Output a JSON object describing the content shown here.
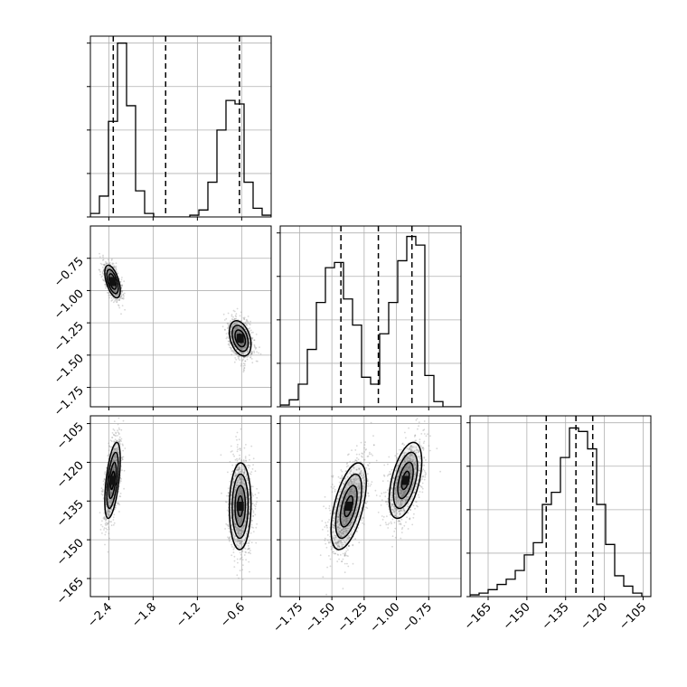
{
  "chart_data": {
    "type": "corner",
    "parameters": [
      {
        "ticks": [
          -2.4,
          -1.8,
          -1.2,
          -0.6
        ],
        "tick_labels": [
          "−2.4",
          "−1.8",
          "−1.2",
          "−0.6"
        ],
        "range": [
          -2.65,
          -0.2
        ],
        "quantiles": [
          -2.34,
          -1.63,
          -0.63
        ],
        "hist_edges_start": -2.65,
        "hist_bin_width": 0.1225,
        "hist_counts": [
          0.02,
          0.12,
          0.55,
          1.0,
          0.64,
          0.15,
          0.02,
          0.0,
          0.0,
          0.0,
          0.0,
          0.01,
          0.04,
          0.2,
          0.5,
          0.67,
          0.65,
          0.2,
          0.05,
          0.01
        ]
      },
      {
        "ticks": [
          -0.75,
          -1.0,
          -1.25,
          -1.5,
          -1.75
        ],
        "tick_labels": [
          "−0.75",
          "−1.00",
          "−1.25",
          "−1.50",
          "−1.75"
        ],
        "range": [
          -1.9,
          -0.5
        ],
        "quantiles": [
          -1.43,
          -1.14,
          -0.88
        ],
        "hist_edges_start": -1.9,
        "hist_bin_width": 0.07,
        "hist_counts": [
          0.01,
          0.04,
          0.13,
          0.33,
          0.6,
          0.8,
          0.83,
          0.62,
          0.47,
          0.17,
          0.13,
          0.42,
          0.6,
          0.84,
          0.98,
          0.93,
          0.18,
          0.03,
          0.0,
          0.0
        ]
      },
      {
        "ticks": [
          -165,
          -150,
          -135,
          -120,
          -105
        ],
        "tick_labels": [
          "−165",
          "−150",
          "−135",
          "−120",
          "−105"
        ],
        "range": [
          -172,
          -102
        ],
        "quantiles": [
          -142.5,
          -131.0,
          -124.5
        ],
        "hist_edges_start": -172,
        "hist_bin_width": 3.5,
        "hist_counts": [
          0.01,
          0.02,
          0.04,
          0.07,
          0.1,
          0.15,
          0.24,
          0.31,
          0.53,
          0.6,
          0.8,
          0.97,
          0.95,
          0.85,
          0.53,
          0.3,
          0.12,
          0.06,
          0.02,
          0.0
        ]
      }
    ],
    "clusters": [
      {
        "means": [
          -2.35,
          -0.93,
          -127
        ],
        "sds": [
          0.05,
          0.06,
          7
        ]
      },
      {
        "means": [
          -0.62,
          -1.37,
          -137
        ],
        "sds": [
          0.07,
          0.065,
          8
        ]
      }
    ],
    "hist_y_ticks": [
      0.0,
      0.25,
      0.5,
      0.75,
      1.0
    ],
    "grid": true,
    "colors": {
      "line": "#000000",
      "grid": "#b0b0b0",
      "scatter": "#8c8c8c",
      "density": "#5a5a5a"
    }
  }
}
